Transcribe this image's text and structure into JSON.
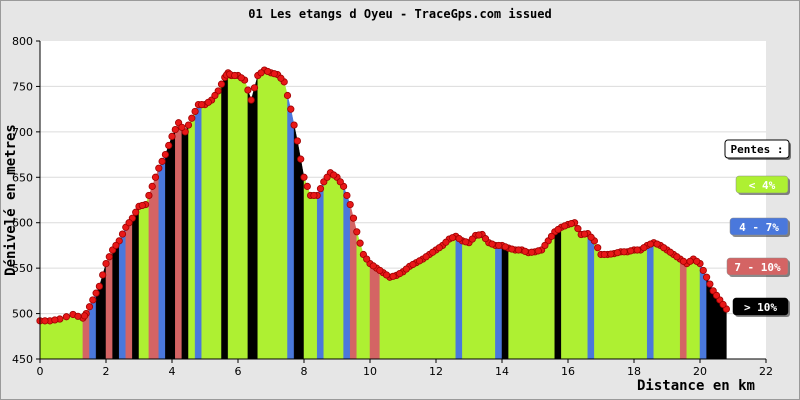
{
  "chart_data": {
    "type": "area",
    "title": "01 Les etangs d Oyeu - TraceGps.com issued",
    "xlabel": "Distance en km",
    "ylabel": "Dénivelé en metres",
    "xlim": [
      0,
      22
    ],
    "ylim": [
      450,
      800
    ],
    "x_ticks": [
      0,
      2,
      4,
      6,
      8,
      10,
      12,
      14,
      16,
      18,
      20,
      22
    ],
    "y_ticks": [
      450,
      500,
      550,
      600,
      650,
      700,
      750,
      800
    ],
    "grid": true,
    "legend_position": "right",
    "legend_title": "Pentes :",
    "legend": [
      {
        "label": "< 4%",
        "color": "#aef032",
        "text_color": "#ffffff"
      },
      {
        "label": "4 - 7%",
        "color": "#4a78dc",
        "text_color": "#ffffff"
      },
      {
        "label": "7 - 10%",
        "color": "#d46464",
        "text_color": "#ffffff"
      },
      {
        "label": "> 10%",
        "color": "#000000",
        "text_color": "#ffffff"
      }
    ],
    "colors": {
      "plot_bg": "#ffffff",
      "frame_bg": "#e6e6e6",
      "grid": "#dcdcdc",
      "marker": "#e81818",
      "marker_edge": "#a00000"
    },
    "series": [
      {
        "x": [
          0.0,
          0.3,
          0.6,
          1.0,
          1.3,
          1.4,
          1.6,
          1.8,
          2.0,
          2.2,
          2.4,
          2.6,
          2.8,
          3.0,
          3.2,
          3.4,
          3.6,
          3.8,
          4.0,
          4.2,
          4.4,
          4.6,
          4.8,
          5.0,
          5.2,
          5.4,
          5.6,
          5.7,
          5.8,
          6.0,
          6.2,
          6.4,
          6.6,
          6.8,
          7.0,
          7.2,
          7.4,
          7.6,
          7.8,
          8.0,
          8.2,
          8.4,
          8.6,
          8.8,
          9.0,
          9.2,
          9.4,
          9.6,
          9.8,
          10.0,
          10.2,
          10.4,
          10.6,
          10.8,
          11.0,
          11.2,
          11.4,
          11.6,
          11.8,
          12.0,
          12.2,
          12.4,
          12.6,
          12.8,
          13.0,
          13.2,
          13.4,
          13.6,
          13.8,
          14.0,
          14.2,
          14.4,
          14.6,
          14.8,
          15.0,
          15.2,
          15.4,
          15.6,
          15.8,
          16.0,
          16.2,
          16.4,
          16.6,
          16.8,
          17.0,
          17.2,
          17.4,
          17.6,
          17.8,
          18.0,
          18.2,
          18.4,
          18.6,
          18.8,
          19.0,
          19.2,
          19.4,
          19.6,
          19.8,
          20.0,
          20.2,
          20.4,
          20.6,
          20.8
        ],
        "y": [
          492,
          492,
          494,
          499,
          495,
          500,
          515,
          530,
          555,
          570,
          580,
          595,
          605,
          618,
          620,
          640,
          660,
          675,
          695,
          710,
          700,
          715,
          730,
          730,
          735,
          745,
          760,
          765,
          762,
          762,
          757,
          735,
          762,
          768,
          765,
          763,
          755,
          725,
          690,
          650,
          630,
          630,
          645,
          655,
          650,
          640,
          620,
          590,
          565,
          555,
          550,
          545,
          540,
          542,
          546,
          552,
          556,
          560,
          565,
          570,
          575,
          582,
          585,
          580,
          578,
          586,
          587,
          578,
          575,
          575,
          572,
          570,
          570,
          567,
          568,
          570,
          580,
          590,
          595,
          598,
          600,
          587,
          588,
          580,
          565,
          565,
          566,
          568,
          568,
          570,
          570,
          575,
          578,
          575,
          570,
          565,
          560,
          555,
          560,
          555,
          540,
          525,
          515,
          505
        ],
        "segments": [
          {
            "x0": 0.0,
            "x1": 1.3,
            "slope": "lt4"
          },
          {
            "x0": 1.3,
            "x1": 1.5,
            "slope": "7to10"
          },
          {
            "x0": 1.5,
            "x1": 1.7,
            "slope": "4to7"
          },
          {
            "x0": 1.7,
            "x1": 2.0,
            "slope": "gt10"
          },
          {
            "x0": 2.0,
            "x1": 2.2,
            "slope": "7to10"
          },
          {
            "x0": 2.2,
            "x1": 2.4,
            "slope": "gt10"
          },
          {
            "x0": 2.4,
            "x1": 2.6,
            "slope": "4to7"
          },
          {
            "x0": 2.6,
            "x1": 2.8,
            "slope": "7to10"
          },
          {
            "x0": 2.8,
            "x1": 3.0,
            "slope": "gt10"
          },
          {
            "x0": 3.0,
            "x1": 3.3,
            "slope": "lt4"
          },
          {
            "x0": 3.3,
            "x1": 3.6,
            "slope": "7to10"
          },
          {
            "x0": 3.6,
            "x1": 3.8,
            "slope": "4to7"
          },
          {
            "x0": 3.8,
            "x1": 4.1,
            "slope": "gt10"
          },
          {
            "x0": 4.1,
            "x1": 4.3,
            "slope": "7to10"
          },
          {
            "x0": 4.3,
            "x1": 4.5,
            "slope": "gt10"
          },
          {
            "x0": 4.5,
            "x1": 4.7,
            "slope": "lt4"
          },
          {
            "x0": 4.7,
            "x1": 4.9,
            "slope": "4to7"
          },
          {
            "x0": 4.9,
            "x1": 5.5,
            "slope": "lt4"
          },
          {
            "x0": 5.5,
            "x1": 5.7,
            "slope": "gt10"
          },
          {
            "x0": 5.7,
            "x1": 6.3,
            "slope": "lt4"
          },
          {
            "x0": 6.3,
            "x1": 6.6,
            "slope": "gt10"
          },
          {
            "x0": 6.6,
            "x1": 7.5,
            "slope": "lt4"
          },
          {
            "x0": 7.5,
            "x1": 7.7,
            "slope": "4to7"
          },
          {
            "x0": 7.7,
            "x1": 8.0,
            "slope": "gt10"
          },
          {
            "x0": 8.0,
            "x1": 8.4,
            "slope": "lt4"
          },
          {
            "x0": 8.4,
            "x1": 8.6,
            "slope": "4to7"
          },
          {
            "x0": 8.6,
            "x1": 9.2,
            "slope": "lt4"
          },
          {
            "x0": 9.2,
            "x1": 9.4,
            "slope": "4to7"
          },
          {
            "x0": 9.4,
            "x1": 9.6,
            "slope": "7to10"
          },
          {
            "x0": 9.6,
            "x1": 10.0,
            "slope": "lt4"
          },
          {
            "x0": 10.0,
            "x1": 10.3,
            "slope": "7to10"
          },
          {
            "x0": 10.3,
            "x1": 12.6,
            "slope": "lt4"
          },
          {
            "x0": 12.6,
            "x1": 12.8,
            "slope": "4to7"
          },
          {
            "x0": 12.8,
            "x1": 13.8,
            "slope": "lt4"
          },
          {
            "x0": 13.8,
            "x1": 14.0,
            "slope": "4to7"
          },
          {
            "x0": 14.0,
            "x1": 14.2,
            "slope": "gt10"
          },
          {
            "x0": 14.2,
            "x1": 15.6,
            "slope": "lt4"
          },
          {
            "x0": 15.6,
            "x1": 15.8,
            "slope": "gt10"
          },
          {
            "x0": 15.8,
            "x1": 16.6,
            "slope": "lt4"
          },
          {
            "x0": 16.6,
            "x1": 16.8,
            "slope": "4to7"
          },
          {
            "x0": 16.8,
            "x1": 18.4,
            "slope": "lt4"
          },
          {
            "x0": 18.4,
            "x1": 18.6,
            "slope": "4to7"
          },
          {
            "x0": 18.6,
            "x1": 19.4,
            "slope": "lt4"
          },
          {
            "x0": 19.4,
            "x1": 19.6,
            "slope": "7to10"
          },
          {
            "x0": 19.6,
            "x1": 20.0,
            "slope": "lt4"
          },
          {
            "x0": 20.0,
            "x1": 20.2,
            "slope": "4to7"
          },
          {
            "x0": 20.2,
            "x1": 20.8,
            "slope": "gt10"
          }
        ]
      }
    ]
  }
}
